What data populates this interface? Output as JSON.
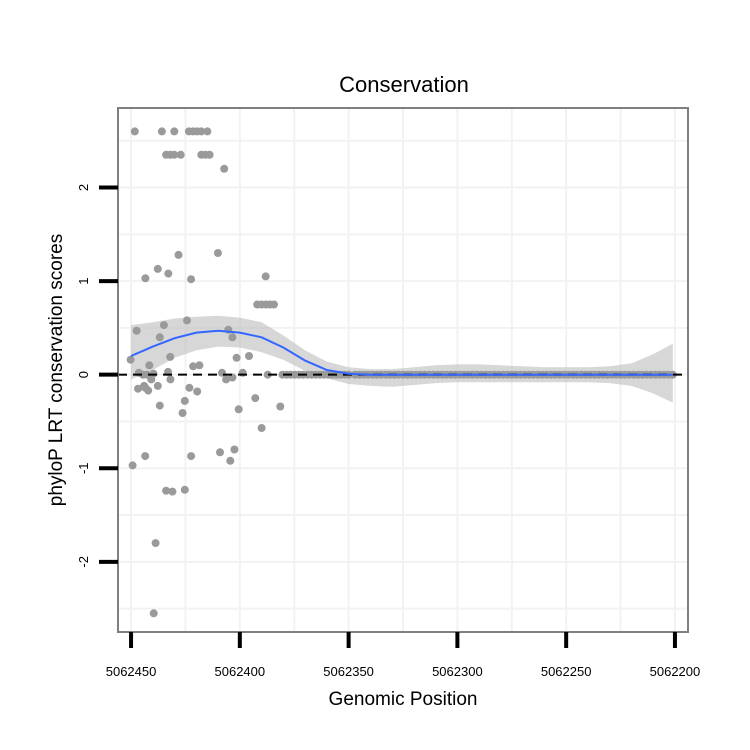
{
  "chart_data": {
    "type": "scatter",
    "title": "Conservation",
    "xlabel": "Genomic Position",
    "ylabel": "phyloP LRT conservation scores",
    "x_reversed": true,
    "xlim": [
      5062456,
      5062194
    ],
    "ylim": [
      -2.75,
      2.85
    ],
    "x_ticks": [
      5062450,
      5062400,
      5062350,
      5062300,
      5062250,
      5062200
    ],
    "x_tick_labels": [
      "5062450",
      "5062400",
      "5062350",
      "5062300",
      "5062250",
      "5062200"
    ],
    "y_ticks": [
      -2,
      -1,
      0,
      1,
      2
    ],
    "y_tick_labels": [
      "-2",
      "-1",
      "0",
      "1",
      "2"
    ],
    "x_minor_gridlines": [
      5062425,
      5062375,
      5062325,
      5062275,
      5062225
    ],
    "y_minor_gridlines": [
      -2.5,
      -1.5,
      -0.5,
      0.5,
      1.5,
      2.5
    ],
    "reference_line": {
      "y": 0,
      "style": "dashed"
    },
    "grid": true,
    "colors": {
      "points": "#9a9a9a",
      "smooth_line": "#3366ff",
      "ribbon": "#bdbdbd",
      "grid": "#f2f2f2",
      "panel_border": "#7f7f7f"
    },
    "points": [
      [
        5062448.3,
        2.6
      ],
      [
        5062435.8,
        2.6
      ],
      [
        5062430.1,
        2.6
      ],
      [
        5062423.4,
        2.6
      ],
      [
        5062421.5,
        2.6
      ],
      [
        5062419.6,
        2.6
      ],
      [
        5062417.7,
        2.6
      ],
      [
        5062414.9,
        2.6
      ],
      [
        5062433.9,
        2.35
      ],
      [
        5062432.0,
        2.35
      ],
      [
        5062430.1,
        2.35
      ],
      [
        5062427.2,
        2.35
      ],
      [
        5062417.7,
        2.35
      ],
      [
        5062415.8,
        2.35
      ],
      [
        5062413.9,
        2.35
      ],
      [
        5062407.2,
        2.2
      ],
      [
        5062428.2,
        1.28
      ],
      [
        5062410.1,
        1.3
      ],
      [
        5062437.7,
        1.13
      ],
      [
        5062443.4,
        1.03
      ],
      [
        5062422.4,
        1.02
      ],
      [
        5062432.9,
        1.08
      ],
      [
        5062388.1,
        1.05
      ],
      [
        5062392.0,
        0.75
      ],
      [
        5062390.0,
        0.75
      ],
      [
        5062388.1,
        0.75
      ],
      [
        5062386.2,
        0.75
      ],
      [
        5062384.3,
        0.75
      ],
      [
        5062447.4,
        0.47
      ],
      [
        5062436.8,
        0.4
      ],
      [
        5062434.9,
        0.53
      ],
      [
        5062424.3,
        0.58
      ],
      [
        5062405.3,
        0.48
      ],
      [
        5062403.4,
        0.4
      ],
      [
        5062450.2,
        0.16
      ],
      [
        5062441.6,
        0.1
      ],
      [
        5062432.0,
        0.19
      ],
      [
        5062421.5,
        0.09
      ],
      [
        5062418.6,
        0.1
      ],
      [
        5062401.5,
        0.18
      ],
      [
        5062395.8,
        0.2
      ],
      [
        5062446.4,
        0.02
      ],
      [
        5062444.5,
        0.0
      ],
      [
        5062442.6,
        0.0
      ],
      [
        5062439.7,
        0.01
      ],
      [
        5062433.0,
        0.03
      ],
      [
        5062408.2,
        0.02
      ],
      [
        5062398.7,
        0.02
      ],
      [
        5062387.2,
        0.0
      ],
      [
        5062444.0,
        -0.12
      ],
      [
        5062442.1,
        -0.17
      ],
      [
        5062446.8,
        -0.15
      ],
      [
        5062443.4,
        -0.14
      ],
      [
        5062440.7,
        -0.05
      ],
      [
        5062437.7,
        -0.12
      ],
      [
        5062431.9,
        -0.05
      ],
      [
        5062423.2,
        -0.14
      ],
      [
        5062419.6,
        -0.18
      ],
      [
        5062406.3,
        -0.05
      ],
      [
        5062403.4,
        -0.03
      ],
      [
        5062436.8,
        -0.33
      ],
      [
        5062425.3,
        -0.28
      ],
      [
        5062426.3,
        -0.41
      ],
      [
        5062400.5,
        -0.37
      ],
      [
        5062392.9,
        -0.25
      ],
      [
        5062381.4,
        -0.34
      ],
      [
        5062390.0,
        -0.57
      ],
      [
        5062449.3,
        -0.97
      ],
      [
        5062443.5,
        -0.87
      ],
      [
        5062433.9,
        -1.24
      ],
      [
        5062431.0,
        -1.25
      ],
      [
        5062425.3,
        -1.23
      ],
      [
        5062422.4,
        -0.87
      ],
      [
        5062409.1,
        -0.83
      ],
      [
        5062404.4,
        -0.92
      ],
      [
        5062402.5,
        -0.8
      ],
      [
        5062438.7,
        -1.8
      ],
      [
        5062439.6,
        -2.55
      ],
      [
        5062380.4,
        0.0
      ],
      [
        5062378.5,
        0.0
      ],
      [
        5062376.6,
        0.0
      ],
      [
        5062374.7,
        0.0
      ],
      [
        5062372.8,
        0.0
      ],
      [
        5062370.9,
        0.0
      ],
      [
        5062368.9,
        0.0
      ],
      [
        5062367.0,
        0.0
      ],
      [
        5062365.1,
        0.0
      ],
      [
        5062363.2,
        0.0
      ],
      [
        5062361.3,
        0.0
      ],
      [
        5062359.4,
        0.0
      ],
      [
        5062357.5,
        0.0
      ],
      [
        5062355.6,
        0.0
      ],
      [
        5062353.7,
        0.0
      ],
      [
        5062351.8,
        0.0
      ],
      [
        5062349.9,
        0.0
      ],
      [
        5062347.0,
        0.0
      ],
      [
        5062345.0,
        0.0
      ],
      [
        5062343.0,
        0.0
      ],
      [
        5062341.0,
        0.0
      ],
      [
        5062339.0,
        0.0
      ],
      [
        5062337.0,
        0.0
      ],
      [
        5062335.0,
        0.0
      ],
      [
        5062333.0,
        0.0
      ],
      [
        5062331.0,
        0.0
      ],
      [
        5062329.0,
        0.0
      ],
      [
        5062327.0,
        0.0
      ],
      [
        5062325.0,
        0.0
      ],
      [
        5062323.0,
        0.0
      ],
      [
        5062321.0,
        0.0
      ],
      [
        5062319.0,
        0.0
      ],
      [
        5062317.0,
        0.0
      ],
      [
        5062315.0,
        0.0
      ],
      [
        5062313.0,
        0.0
      ],
      [
        5062311.0,
        0.0
      ],
      [
        5062309.0,
        0.0
      ],
      [
        5062307.0,
        0.0
      ],
      [
        5062305.0,
        0.0
      ],
      [
        5062303.0,
        0.0
      ],
      [
        5062301.0,
        0.0
      ],
      [
        5062299.0,
        0.0
      ],
      [
        5062297.0,
        0.0
      ],
      [
        5062295.0,
        0.0
      ],
      [
        5062293.0,
        0.0
      ],
      [
        5062291.0,
        0.0
      ],
      [
        5062289.0,
        0.0
      ],
      [
        5062287.0,
        0.0
      ],
      [
        5062285.0,
        0.0
      ],
      [
        5062283.0,
        0.0
      ],
      [
        5062281.0,
        0.0
      ],
      [
        5062279.0,
        0.0
      ],
      [
        5062277.0,
        0.0
      ],
      [
        5062275.0,
        0.0
      ],
      [
        5062273.0,
        0.0
      ],
      [
        5062271.0,
        0.0
      ],
      [
        5062269.0,
        0.0
      ],
      [
        5062267.0,
        0.0
      ],
      [
        5062265.0,
        0.0
      ],
      [
        5062263.0,
        0.0
      ],
      [
        5062261.0,
        0.0
      ],
      [
        5062259.0,
        0.0
      ],
      [
        5062257.0,
        0.0
      ],
      [
        5062255.0,
        0.0
      ],
      [
        5062253.0,
        0.0
      ],
      [
        5062251.0,
        0.0
      ],
      [
        5062249.0,
        0.0
      ],
      [
        5062247.0,
        0.0
      ],
      [
        5062245.0,
        0.0
      ],
      [
        5062243.0,
        0.0
      ],
      [
        5062241.0,
        0.0
      ],
      [
        5062239.0,
        0.0
      ],
      [
        5062237.0,
        0.0
      ],
      [
        5062235.0,
        0.0
      ],
      [
        5062233.0,
        0.0
      ],
      [
        5062231.0,
        0.0
      ],
      [
        5062229.0,
        0.0
      ],
      [
        5062227.0,
        0.0
      ],
      [
        5062225.0,
        0.0
      ],
      [
        5062223.0,
        0.0
      ],
      [
        5062221.0,
        0.0
      ],
      [
        5062219.0,
        0.0
      ],
      [
        5062217.0,
        0.0
      ],
      [
        5062215.0,
        0.0
      ],
      [
        5062213.0,
        0.0
      ],
      [
        5062211.0,
        0.0
      ],
      [
        5062209.0,
        0.0
      ],
      [
        5062207.0,
        0.0
      ],
      [
        5062205.0,
        0.0
      ],
      [
        5062203.0,
        0.0
      ],
      [
        5062201.0,
        0.0
      ]
    ],
    "smooth": {
      "method": "loess",
      "x": [
        5062450,
        5062440,
        5062430,
        5062420,
        5062410,
        5062400,
        5062390,
        5062380,
        5062370,
        5062360,
        5062350,
        5062340,
        5062330,
        5062320,
        5062310,
        5062300,
        5062290,
        5062280,
        5062270,
        5062260,
        5062250,
        5062240,
        5062230,
        5062220,
        5062210,
        5062201
      ],
      "y": [
        0.2,
        0.3,
        0.39,
        0.45,
        0.47,
        0.45,
        0.4,
        0.29,
        0.15,
        0.05,
        0.01,
        0.0,
        0.0,
        0.0,
        0.0,
        0.0,
        0.0,
        0.0,
        0.0,
        0.0,
        0.0,
        0.0,
        0.0,
        0.0,
        0.0,
        0.0
      ],
      "upper": [
        0.53,
        0.56,
        0.6,
        0.62,
        0.63,
        0.61,
        0.56,
        0.42,
        0.26,
        0.14,
        0.08,
        0.06,
        0.06,
        0.08,
        0.1,
        0.11,
        0.11,
        0.1,
        0.09,
        0.08,
        0.08,
        0.08,
        0.09,
        0.12,
        0.22,
        0.33
      ],
      "lower": [
        -0.05,
        0.05,
        0.18,
        0.26,
        0.3,
        0.29,
        0.24,
        0.16,
        0.04,
        -0.04,
        -0.1,
        -0.12,
        -0.13,
        -0.11,
        -0.09,
        -0.08,
        -0.08,
        -0.08,
        -0.08,
        -0.08,
        -0.08,
        -0.08,
        -0.09,
        -0.12,
        -0.2,
        -0.3
      ]
    }
  }
}
